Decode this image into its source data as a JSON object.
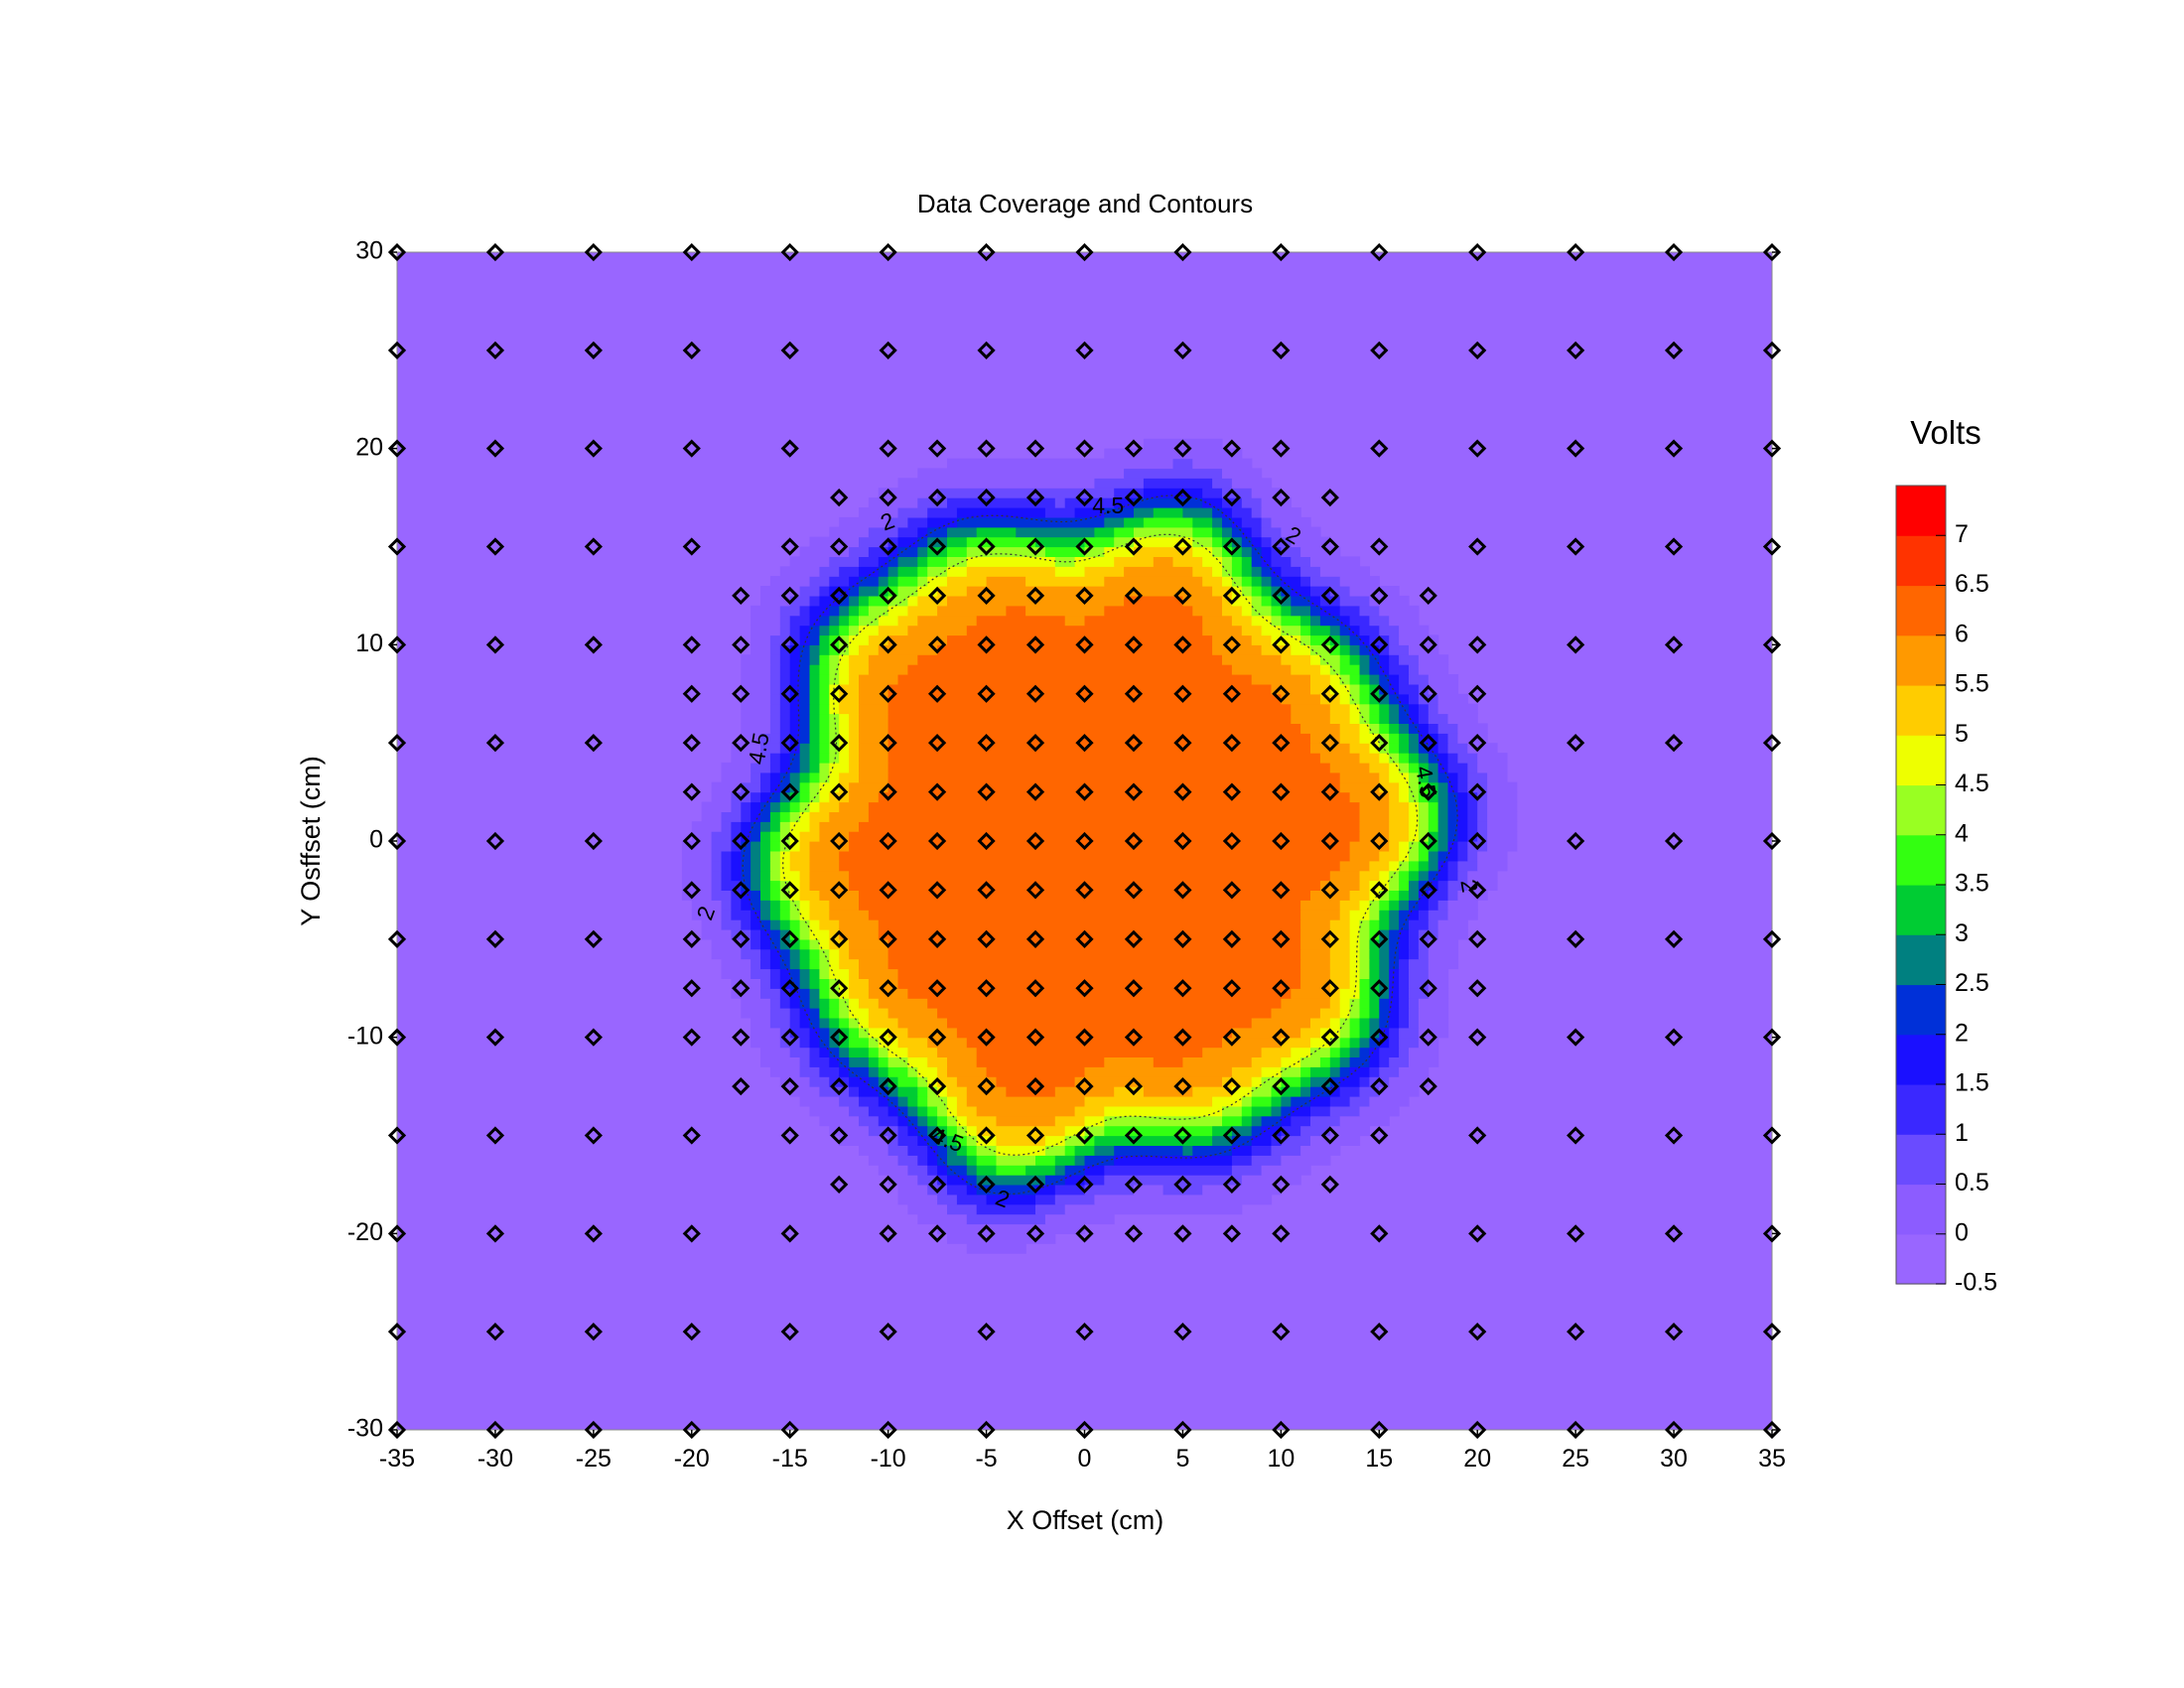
{
  "chart_data": {
    "type": "contour",
    "title": "Data Coverage and Contours",
    "xlabel": "X Offset (cm)",
    "ylabel": "Y Osffset (cm)",
    "xlim": [
      -35,
      35
    ],
    "ylim": [
      -30,
      30
    ],
    "x_ticks": [
      -35,
      -30,
      -25,
      -20,
      -15,
      -10,
      -5,
      0,
      5,
      10,
      15,
      20,
      25,
      30,
      35
    ],
    "y_ticks": [
      30,
      20,
      10,
      0,
      -10,
      -20,
      -30
    ],
    "field": {
      "center": [
        0.5,
        0
      ],
      "peak": 6.2,
      "background": -0.3,
      "plateau_radius_cm": 16.5,
      "edge_width_cm": 2.5
    },
    "contour_lines": [
      {
        "level": "2",
        "value": 2.0
      },
      {
        "level": "4.5",
        "value": 4.5
      }
    ],
    "contour_labels": [
      {
        "text": "2",
        "x": -10,
        "y": 16.2,
        "angle": -20
      },
      {
        "text": "4.5",
        "x": 1.2,
        "y": 17,
        "angle": 0
      },
      {
        "text": "2",
        "x": 10.6,
        "y": 15.5,
        "angle": 30
      },
      {
        "text": "4.5",
        "x": -16.5,
        "y": 4.7,
        "angle": -80
      },
      {
        "text": "4.5",
        "x": 17.3,
        "y": 3.0,
        "angle": 80
      },
      {
        "text": "2",
        "x": -19.2,
        "y": -3.7,
        "angle": -70
      },
      {
        "text": "2",
        "x": 19.5,
        "y": -2.3,
        "angle": 80
      },
      {
        "text": "4.5",
        "x": -7.0,
        "y": -15.3,
        "angle": 20
      },
      {
        "text": "2",
        "x": -4.2,
        "y": -18.3,
        "angle": 20
      }
    ],
    "legend": {
      "title": "Volts",
      "position": "right",
      "min": -0.5,
      "max": 7.5,
      "step": 0.5,
      "labels": [
        "7",
        "6.5",
        "6",
        "5.5",
        "5",
        "4.5",
        "4",
        "3.5",
        "3",
        "2.5",
        "2",
        "1.5",
        "1",
        "0.5",
        "0",
        "-0.5"
      ],
      "colors": [
        "#9966ff",
        "#8c5cff",
        "#6a4bff",
        "#3a28ff",
        "#1a10ff",
        "#0030d8",
        "#008080",
        "#00cc33",
        "#33ff11",
        "#99ff22",
        "#eeff00",
        "#ffcc00",
        "#ff9900",
        "#ff6600",
        "#ff3300",
        "#ff0000"
      ]
    },
    "sample_points": {
      "outer_x": [
        -35,
        -30,
        -25,
        -20,
        -15,
        -10,
        -5,
        0,
        5,
        10,
        15,
        20,
        25,
        30,
        35
      ],
      "outer_y": [
        30,
        25,
        20,
        15,
        10,
        5,
        0,
        -5,
        -10,
        -15,
        -20,
        -25,
        -30
      ],
      "dense_range": {
        "x": [
          -20,
          20
        ],
        "y": [
          -20,
          20
        ],
        "step": 2.5
      }
    }
  }
}
